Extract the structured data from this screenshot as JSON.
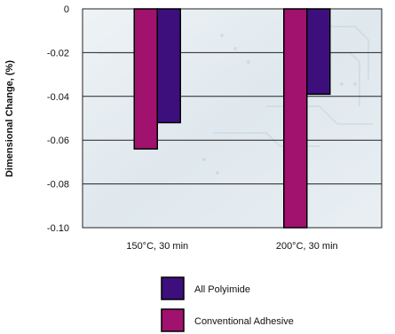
{
  "chart_data": {
    "type": "bar",
    "ylabel": "Dimensional Change, (%)",
    "xlabel": "",
    "ylim": [
      -0.1,
      0
    ],
    "yticks": [
      "0",
      "-0.02",
      "-0.04",
      "-0.06",
      "-0.08",
      "-0.10"
    ],
    "categories": [
      "150°C, 30 min",
      "200°C, 30 min"
    ],
    "series": [
      {
        "name": "Conventional Adhesive",
        "color": "#a0126e",
        "values": [
          -0.064,
          -0.1
        ]
      },
      {
        "name": "All Polyimide",
        "color": "#3d0f7d",
        "values": [
          -0.052,
          -0.039
        ]
      }
    ],
    "legend_order": [
      1,
      0
    ],
    "legend_position": "bottom",
    "grid": true
  }
}
